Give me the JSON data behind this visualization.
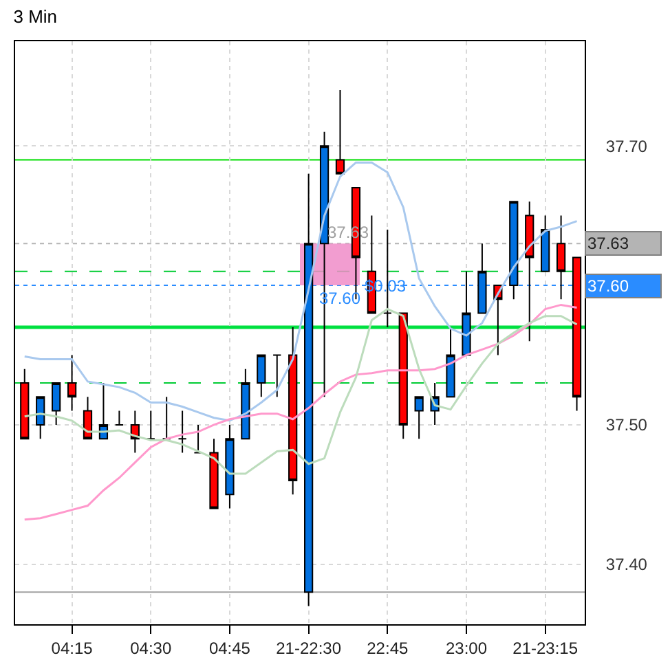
{
  "chart_data": {
    "type": "candlestick",
    "title": "3 Min",
    "categories": [
      null,
      null,
      null,
      "04:15",
      null,
      null,
      null,
      null,
      "04:30",
      null,
      null,
      null,
      null,
      "04:45",
      null,
      null,
      null,
      null,
      "21-22:30",
      null,
      null,
      null,
      null,
      "22:45",
      null,
      null,
      null,
      null,
      "23:00",
      null,
      null,
      null,
      null,
      "21-23:15",
      null,
      null
    ],
    "ohlc": [
      [
        37.53,
        37.54,
        37.49,
        37.49
      ],
      [
        37.5,
        37.52,
        37.49,
        37.52
      ],
      [
        37.51,
        37.53,
        37.5,
        37.53
      ],
      [
        37.53,
        37.55,
        37.51,
        37.52
      ],
      [
        37.51,
        37.52,
        37.49,
        37.49
      ],
      [
        37.49,
        37.53,
        37.49,
        37.5
      ],
      [
        37.5,
        37.51,
        37.5,
        37.5
      ],
      [
        37.5,
        37.51,
        37.48,
        37.49
      ],
      [
        37.49,
        37.51,
        37.49,
        37.49
      ],
      [
        37.49,
        37.52,
        37.49,
        37.49
      ],
      [
        37.49,
        37.51,
        37.48,
        37.49
      ],
      [
        37.48,
        37.5,
        37.48,
        37.48
      ],
      [
        37.48,
        37.49,
        37.44,
        37.44
      ],
      [
        37.45,
        37.5,
        37.44,
        37.49
      ],
      [
        37.49,
        37.54,
        37.49,
        37.53
      ],
      [
        37.53,
        37.55,
        37.52,
        37.55
      ],
      [
        37.55,
        37.55,
        37.52,
        37.55
      ],
      [
        37.55,
        37.57,
        37.45,
        37.46
      ],
      [
        37.38,
        37.68,
        37.37,
        37.63
      ],
      [
        37.63,
        37.71,
        37.52,
        37.7
      ],
      [
        37.69,
        37.74,
        37.68,
        37.68
      ],
      [
        37.67,
        37.67,
        37.59,
        37.62
      ],
      [
        37.61,
        37.65,
        37.58,
        37.58
      ],
      [
        37.58,
        37.64,
        37.57,
        37.58
      ],
      [
        37.58,
        37.58,
        37.49,
        37.5
      ],
      [
        37.51,
        37.52,
        37.49,
        37.52
      ],
      [
        37.51,
        37.53,
        37.5,
        37.52
      ],
      [
        37.52,
        37.57,
        37.52,
        37.55
      ],
      [
        37.55,
        37.61,
        37.55,
        37.58
      ],
      [
        37.58,
        37.63,
        37.58,
        37.61
      ],
      [
        37.6,
        37.6,
        37.55,
        37.59
      ],
      [
        37.6,
        37.66,
        37.59,
        37.66
      ],
      [
        37.65,
        37.66,
        37.56,
        37.62
      ],
      [
        37.61,
        37.65,
        37.61,
        37.64
      ],
      [
        37.63,
        37.65,
        37.59,
        37.61
      ],
      [
        37.62,
        37.62,
        37.51,
        37.52
      ]
    ],
    "colors": [
      "#ff0000",
      "#0070e0",
      "#0070e0",
      "#ff0000",
      "#ff0000",
      "#0070e0",
      "#000000",
      "#ff0000",
      "#000000",
      "#000000",
      "#000000",
      "#000000",
      "#ff0000",
      "#0070e0",
      "#0070e0",
      "#0070e0",
      "#000000",
      "#ff0000",
      "#0070e0",
      "#0070e0",
      "#ff0000",
      "#ff0000",
      "#ff0000",
      "#000000",
      "#ff0000",
      "#0070e0",
      "#0070e0",
      "#0070e0",
      "#0070e0",
      "#0070e0",
      "#ff0000",
      "#0070e0",
      "#ff0000",
      "#0070e0",
      "#ff0000",
      "#ff0000"
    ],
    "series": [
      {
        "type": "line",
        "color": "#a9c9ee",
        "values": [
          37.549,
          37.547,
          37.547,
          37.547,
          37.531,
          37.529,
          37.527,
          37.523,
          37.516,
          37.516,
          37.513,
          37.509,
          37.505,
          37.503,
          37.508,
          37.516,
          37.525,
          37.547,
          37.597,
          37.65,
          37.678,
          37.688,
          37.688,
          37.681,
          37.656,
          37.605,
          37.585,
          37.569,
          37.564,
          37.573,
          37.594,
          37.613,
          37.628,
          37.639,
          37.642,
          37.646
        ]
      },
      {
        "type": "line",
        "color": "#ff99cc",
        "values": [
          37.432,
          37.433,
          37.436,
          37.439,
          37.442,
          37.453,
          37.462,
          37.473,
          37.484,
          37.49,
          37.493,
          37.495,
          37.5,
          37.504,
          37.506,
          37.508,
          37.508,
          37.504,
          37.512,
          37.522,
          37.531,
          37.536,
          37.537,
          37.539,
          37.539,
          37.539,
          37.54,
          37.544,
          37.55,
          37.554,
          37.558,
          37.564,
          37.572,
          37.583,
          37.586,
          37.584
        ]
      },
      {
        "type": "line",
        "color": "#bcdcbc",
        "values": [
          37.506,
          37.508,
          37.506,
          37.503,
          37.495,
          37.495,
          37.496,
          37.492,
          37.489,
          37.489,
          37.486,
          37.481,
          37.476,
          37.465,
          37.465,
          37.473,
          37.481,
          37.482,
          37.472,
          37.476,
          37.509,
          37.534,
          37.575,
          37.583,
          37.578,
          37.54,
          37.514,
          37.511,
          37.528,
          37.544,
          37.558,
          37.566,
          37.573,
          37.578,
          37.578,
          37.572
        ]
      }
    ],
    "ylim": [
      37.357,
      37.775
    ],
    "yticks": [
      {
        "value": 37.4,
        "label": "37.40"
      },
      {
        "value": 37.5,
        "label": "37.50"
      },
      {
        "value": 37.7,
        "label": "37.70"
      }
    ],
    "grid": true,
    "ref_lines": [
      {
        "axis": "y",
        "value": 37.69,
        "color": "#00dd00",
        "line_style": "solid"
      },
      {
        "axis": "y",
        "value": 37.61,
        "color": "#00cc33",
        "line_style": "dashed"
      },
      {
        "axis": "y",
        "value": 37.57,
        "color": "#00e040",
        "line_style": "solid"
      },
      {
        "axis": "y",
        "value": 37.53,
        "color": "#00cc33",
        "line_style": "dashed"
      },
      {
        "axis": "y",
        "value": 37.38,
        "color": "#a0a0a0",
        "line_style": "solid"
      },
      {
        "axis": "y",
        "value": 37.63,
        "label": "37.63",
        "color": "#b4b4b4",
        "line_style": "dotted"
      },
      {
        "axis": "y",
        "value": 37.6,
        "label": "37.60",
        "color": "#2a8cff",
        "line_style": "dotted"
      }
    ],
    "bands": [
      {
        "axis": "y",
        "from": 37.6,
        "to": 37.63,
        "color": "#f08cc8"
      }
    ],
    "annotations": [
      {
        "text": "37.63",
        "y": 37.63
      },
      {
        "text": "37.60",
        "y": 37.6
      },
      {
        "text": "$0.03",
        "y": 37.6
      }
    ]
  }
}
